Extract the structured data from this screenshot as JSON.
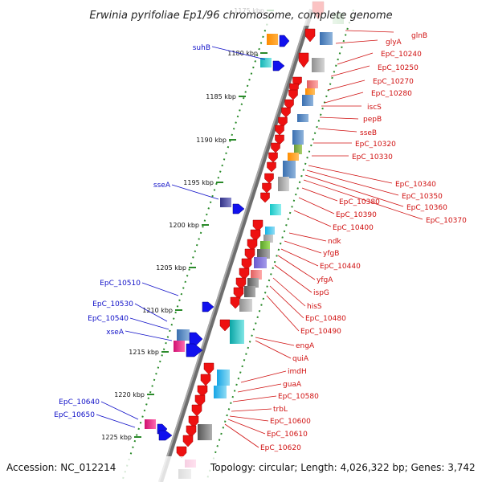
{
  "title": "Erwinia pyrifoliae Ep1/96 chromosome, complete genome",
  "footer": {
    "accession": "Accession: NC_012214",
    "topology": "Topology: circular; Length: 4,026,322 bp; Genes: 3,742"
  },
  "scale": {
    "ticks": [
      "1175 kbp",
      "1180 kbp",
      "1185 kbp",
      "1190 kbp",
      "1195 kbp",
      "1200 kbp",
      "1205 kbp",
      "1210 kbp",
      "1215 kbp",
      "1220 kbp",
      "1225 kbp"
    ]
  },
  "genes_right": [
    "glnB",
    "glyA",
    "EpC_10240",
    "EpC_10250",
    "EpC_10270",
    "EpC_10280",
    "iscS",
    "pepB",
    "sseB",
    "EpC_10320",
    "EpC_10330",
    "EpC_10340",
    "EpC_10350",
    "EpC_10360",
    "EpC_10370",
    "EpC_10380",
    "EpC_10390",
    "EpC_10400",
    "ndk",
    "yfgB",
    "EpC_10440",
    "yfgA",
    "ispG",
    "hisS",
    "EpC_10480",
    "EpC_10490",
    "engA",
    "quiA",
    "imdH",
    "guaA",
    "EpC_10580",
    "trbL",
    "EpC_10600",
    "EpC_10610",
    "EpC_10620"
  ],
  "genes_left": [
    "suhB",
    "sseA",
    "EpC_10510",
    "EpC_10530",
    "EpC_10540",
    "xseA",
    "EpC_10640",
    "EpC_10650"
  ],
  "colors": {
    "backbone": "#8a8a8a",
    "forward_arrow": "#ee1111",
    "reverse_arrow": "#1111ee",
    "right_label": "#d01010",
    "left_label": "#1010c8",
    "tick_dots": "#2a8a2a"
  }
}
